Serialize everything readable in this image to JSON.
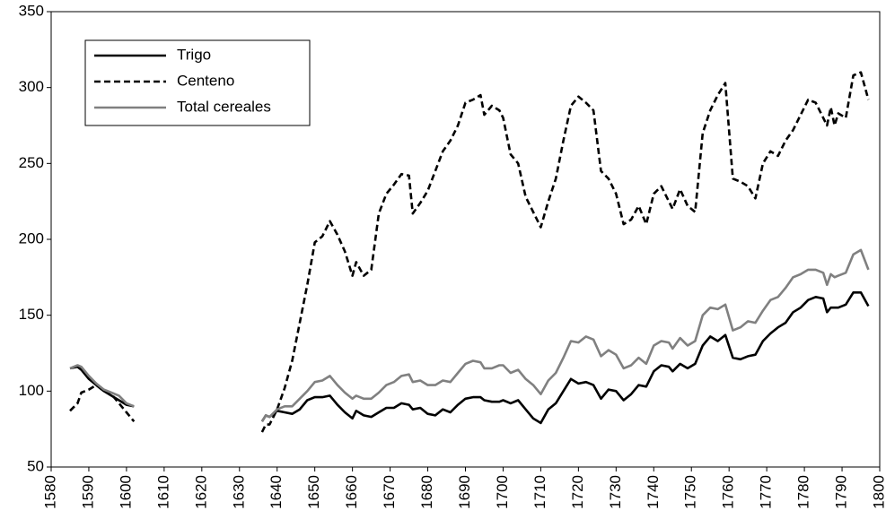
{
  "chart_data": {
    "type": "line",
    "x": [
      1585,
      1587,
      1588,
      1590,
      1592,
      1594,
      1596,
      1598,
      1600,
      1602,
      1620,
      1636,
      1637,
      1638,
      1640,
      1642,
      1644,
      1646,
      1648,
      1650,
      1652,
      1654,
      1656,
      1658,
      1660,
      1661,
      1663,
      1665,
      1667,
      1669,
      1671,
      1673,
      1675,
      1676,
      1678,
      1680,
      1682,
      1684,
      1686,
      1688,
      1690,
      1692,
      1694,
      1695,
      1697,
      1699,
      1700,
      1702,
      1704,
      1706,
      1708,
      1710,
      1712,
      1714,
      1716,
      1718,
      1720,
      1722,
      1724,
      1726,
      1728,
      1730,
      1732,
      1734,
      1736,
      1738,
      1740,
      1742,
      1744,
      1745,
      1747,
      1749,
      1751,
      1753,
      1755,
      1757,
      1759,
      1761,
      1763,
      1765,
      1767,
      1769,
      1771,
      1773,
      1775,
      1777,
      1779,
      1781,
      1783,
      1785,
      1786,
      1787,
      1788,
      1789,
      1791,
      1793,
      1795,
      1797
    ],
    "series": [
      {
        "name": "Trigo",
        "color": "#000000",
        "dash": false,
        "values": [
          115,
          116,
          114,
          108,
          104,
          100,
          97,
          94,
          91,
          90,
          null,
          80,
          84,
          83,
          87,
          86,
          85,
          88,
          94,
          96,
          96,
          97,
          91,
          86,
          82,
          87,
          84,
          83,
          86,
          89,
          89,
          92,
          91,
          88,
          89,
          85,
          84,
          88,
          86,
          91,
          95,
          96,
          96,
          94,
          93,
          93,
          94,
          92,
          94,
          88,
          82,
          79,
          88,
          92,
          100,
          108,
          105,
          106,
          104,
          95,
          101,
          100,
          94,
          98,
          104,
          103,
          113,
          117,
          116,
          113,
          118,
          115,
          118,
          130,
          136,
          133,
          137,
          122,
          121,
          123,
          124,
          133,
          138,
          142,
          145,
          152,
          155,
          160,
          162,
          161,
          152,
          155,
          155,
          155,
          157,
          165,
          165,
          156
        ]
      },
      {
        "name": "Centeno",
        "color": "#000000",
        "dash": true,
        "values": [
          87,
          92,
          99,
          101,
          104,
          100,
          98,
          92,
          86,
          80,
          null,
          73,
          78,
          78,
          88,
          102,
          120,
          145,
          170,
          198,
          202,
          212,
          203,
          192,
          176,
          185,
          176,
          180,
          217,
          230,
          236,
          243,
          242,
          217,
          224,
          232,
          245,
          258,
          265,
          275,
          290,
          292,
          295,
          282,
          288,
          285,
          280,
          256,
          250,
          228,
          218,
          208,
          225,
          240,
          265,
          288,
          294,
          290,
          285,
          245,
          240,
          230,
          210,
          213,
          222,
          210,
          230,
          235,
          225,
          220,
          233,
          222,
          218,
          270,
          285,
          295,
          303,
          240,
          238,
          235,
          227,
          250,
          258,
          255,
          265,
          272,
          282,
          292,
          290,
          280,
          275,
          287,
          275,
          283,
          280,
          308,
          310,
          292
        ]
      },
      {
        "name": "Total cereales",
        "color": "#808080",
        "dash": false,
        "values": [
          115,
          117,
          116,
          110,
          105,
          101,
          99,
          97,
          92,
          90,
          null,
          80,
          84,
          83,
          88,
          90,
          90,
          95,
          100,
          106,
          107,
          110,
          104,
          99,
          95,
          97,
          95,
          95,
          99,
          104,
          106,
          110,
          111,
          106,
          107,
          104,
          104,
          107,
          106,
          112,
          118,
          120,
          119,
          115,
          115,
          117,
          117,
          112,
          114,
          108,
          104,
          98,
          107,
          112,
          122,
          133,
          132,
          136,
          134,
          123,
          127,
          124,
          115,
          117,
          122,
          118,
          130,
          133,
          132,
          128,
          135,
          130,
          133,
          150,
          155,
          154,
          157,
          140,
          142,
          146,
          145,
          153,
          160,
          162,
          168,
          175,
          177,
          180,
          180,
          178,
          170,
          177,
          175,
          176,
          178,
          190,
          193,
          180
        ]
      }
    ],
    "xlim": [
      1580,
      1800
    ],
    "xticks": [
      1580,
      1590,
      1600,
      1610,
      1620,
      1630,
      1640,
      1650,
      1660,
      1670,
      1680,
      1690,
      1700,
      1710,
      1720,
      1730,
      1740,
      1750,
      1760,
      1770,
      1780,
      1790,
      1800
    ],
    "ylim": [
      50,
      350
    ],
    "yticks": [
      50,
      100,
      150,
      200,
      250,
      300,
      350
    ],
    "grid": false,
    "legend": "upper left"
  }
}
